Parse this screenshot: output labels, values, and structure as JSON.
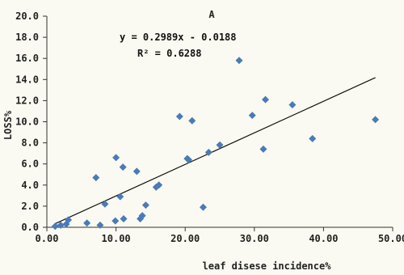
{
  "chart_data": {
    "type": "scatter",
    "title": "A",
    "xlabel": "leaf disese incidence%",
    "ylabel": "LOSS%",
    "xlim": [
      0,
      50
    ],
    "ylim": [
      0,
      20
    ],
    "x_ticks": [
      "0.00",
      "10.00",
      "20.00",
      "30.00",
      "40.00",
      "50.00"
    ],
    "y_ticks": [
      "0.0",
      "2.0",
      "4.0",
      "6.0",
      "8.0",
      "10.0",
      "12.0",
      "14.0",
      "16.0",
      "18.0",
      "20.0"
    ],
    "x_tick_values": [
      0,
      10,
      20,
      30,
      40,
      50
    ],
    "y_tick_values": [
      0,
      2,
      4,
      6,
      8,
      10,
      12,
      14,
      16,
      18,
      20
    ],
    "grid": false,
    "marker_color": "#4a7ab8",
    "line_color": "#111111",
    "points": [
      {
        "x": 1.2,
        "y": 0.1
      },
      {
        "x": 2.0,
        "y": 0.2
      },
      {
        "x": 2.8,
        "y": 0.3
      },
      {
        "x": 3.1,
        "y": 0.7
      },
      {
        "x": 5.8,
        "y": 0.4
      },
      {
        "x": 7.1,
        "y": 4.7
      },
      {
        "x": 7.7,
        "y": 0.2
      },
      {
        "x": 8.4,
        "y": 2.2
      },
      {
        "x": 9.9,
        "y": 0.6
      },
      {
        "x": 10.0,
        "y": 6.6
      },
      {
        "x": 10.6,
        "y": 2.9
      },
      {
        "x": 11.0,
        "y": 5.7
      },
      {
        "x": 11.1,
        "y": 0.8
      },
      {
        "x": 13.0,
        "y": 5.3
      },
      {
        "x": 13.5,
        "y": 0.8
      },
      {
        "x": 13.8,
        "y": 1.1
      },
      {
        "x": 14.3,
        "y": 2.1
      },
      {
        "x": 15.8,
        "y": 3.8
      },
      {
        "x": 16.2,
        "y": 4.0
      },
      {
        "x": 19.2,
        "y": 10.5
      },
      {
        "x": 20.3,
        "y": 6.5
      },
      {
        "x": 20.5,
        "y": 6.4
      },
      {
        "x": 21.0,
        "y": 10.1
      },
      {
        "x": 22.6,
        "y": 1.9
      },
      {
        "x": 23.4,
        "y": 7.1
      },
      {
        "x": 25.0,
        "y": 7.8
      },
      {
        "x": 27.8,
        "y": 15.8
      },
      {
        "x": 29.7,
        "y": 10.6
      },
      {
        "x": 31.3,
        "y": 7.4
      },
      {
        "x": 31.6,
        "y": 12.1
      },
      {
        "x": 35.5,
        "y": 11.6
      },
      {
        "x": 38.4,
        "y": 8.4
      },
      {
        "x": 47.5,
        "y": 10.2
      }
    ],
    "trendline": {
      "slope": 0.2989,
      "intercept": -0.0188,
      "x_range": [
        1.2,
        47.5
      ]
    },
    "annotations": {
      "equation": "y = 0.2989x - 0.0188",
      "r_squared": "R² = 0.6288"
    }
  }
}
